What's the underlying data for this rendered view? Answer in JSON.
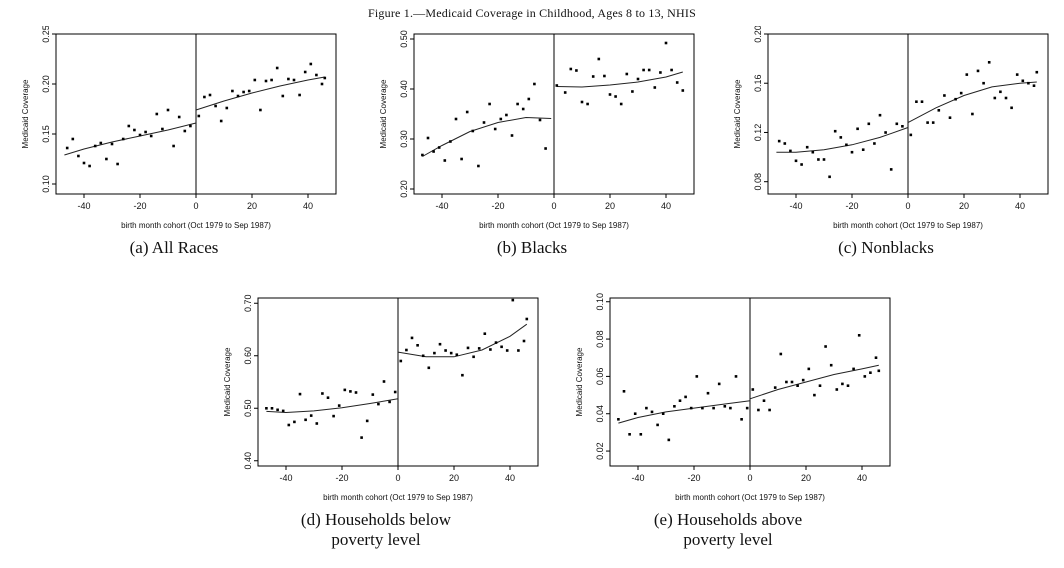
{
  "figure_title": "Figure 1.—Medicaid Coverage in Childhood, Ages 8 to 13, NHIS",
  "chart_data": [
    {
      "id": "a",
      "type": "scatter",
      "caption": [
        "(a) All Races"
      ],
      "xlabel": "birth month cohort (Oct 1979 to Sep 1987)",
      "ylabel": "Medicaid Coverage",
      "xlim": [
        -50,
        50
      ],
      "ylim": [
        0.09,
        0.25
      ],
      "xticks": [
        "-40",
        "-20",
        "0",
        "20",
        "40"
      ],
      "xtick_values": [
        -40,
        -20,
        0,
        20,
        40
      ],
      "yticks": [
        "0.10",
        "0.15",
        "0.20",
        "0.25"
      ],
      "ytick_values": [
        0.1,
        0.15,
        0.2,
        0.25
      ],
      "cutoff": 0,
      "points": [
        [
          -46,
          0.136
        ],
        [
          -44,
          0.145
        ],
        [
          -42,
          0.128
        ],
        [
          -40,
          0.121
        ],
        [
          -38,
          0.118
        ],
        [
          -36,
          0.138
        ],
        [
          -34,
          0.141
        ],
        [
          -32,
          0.125
        ],
        [
          -30,
          0.14
        ],
        [
          -28,
          0.12
        ],
        [
          -26,
          0.145
        ],
        [
          -24,
          0.158
        ],
        [
          -22,
          0.154
        ],
        [
          -20,
          0.149
        ],
        [
          -18,
          0.152
        ],
        [
          -16,
          0.148
        ],
        [
          -14,
          0.17
        ],
        [
          -12,
          0.155
        ],
        [
          -10,
          0.174
        ],
        [
          -8,
          0.138
        ],
        [
          -6,
          0.167
        ],
        [
          -4,
          0.153
        ],
        [
          -2,
          0.158
        ],
        [
          1,
          0.168
        ],
        [
          3,
          0.187
        ],
        [
          5,
          0.189
        ],
        [
          7,
          0.178
        ],
        [
          9,
          0.163
        ],
        [
          11,
          0.176
        ],
        [
          13,
          0.193
        ],
        [
          15,
          0.188
        ],
        [
          17,
          0.192
        ],
        [
          19,
          0.193
        ],
        [
          21,
          0.204
        ],
        [
          23,
          0.174
        ],
        [
          25,
          0.203
        ],
        [
          27,
          0.204
        ],
        [
          29,
          0.216
        ],
        [
          31,
          0.188
        ],
        [
          33,
          0.205
        ],
        [
          35,
          0.204
        ],
        [
          37,
          0.189
        ],
        [
          39,
          0.212
        ],
        [
          41,
          0.22
        ],
        [
          43,
          0.209
        ],
        [
          45,
          0.2
        ],
        [
          46,
          0.206
        ]
      ],
      "fit_left": [
        [
          -47,
          0.129
        ],
        [
          -40,
          0.135
        ],
        [
          -30,
          0.142
        ],
        [
          -20,
          0.148
        ],
        [
          -10,
          0.154
        ],
        [
          0,
          0.161
        ]
      ],
      "fit_right": [
        [
          0,
          0.174
        ],
        [
          10,
          0.183
        ],
        [
          20,
          0.191
        ],
        [
          30,
          0.198
        ],
        [
          40,
          0.204
        ],
        [
          46,
          0.207
        ]
      ]
    },
    {
      "id": "b",
      "type": "scatter",
      "caption": [
        "(b) Blacks"
      ],
      "xlabel": "birth month cohort (Oct 1979 to Sep 1987)",
      "ylabel": "Medicaid Coverage",
      "xlim": [
        -50,
        50
      ],
      "ylim": [
        0.19,
        0.51
      ],
      "xticks": [
        "-40",
        "-20",
        "0",
        "20",
        "40"
      ],
      "xtick_values": [
        -40,
        -20,
        0,
        20,
        40
      ],
      "yticks": [
        "0.20",
        "0.30",
        "0.40",
        "0.50"
      ],
      "ytick_values": [
        0.2,
        0.3,
        0.4,
        0.5
      ],
      "cutoff": 0,
      "points": [
        [
          -47,
          0.268
        ],
        [
          -45,
          0.302
        ],
        [
          -43,
          0.275
        ],
        [
          -41,
          0.283
        ],
        [
          -39,
          0.257
        ],
        [
          -37,
          0.295
        ],
        [
          -35,
          0.34
        ],
        [
          -33,
          0.26
        ],
        [
          -31,
          0.354
        ],
        [
          -29,
          0.316
        ],
        [
          -27,
          0.246
        ],
        [
          -25,
          0.333
        ],
        [
          -23,
          0.37
        ],
        [
          -21,
          0.32
        ],
        [
          -19,
          0.34
        ],
        [
          -17,
          0.348
        ],
        [
          -15,
          0.307
        ],
        [
          -13,
          0.37
        ],
        [
          -11,
          0.36
        ],
        [
          -9,
          0.38
        ],
        [
          -7,
          0.41
        ],
        [
          -5,
          0.338
        ],
        [
          -3,
          0.281
        ],
        [
          1,
          0.407
        ],
        [
          4,
          0.393
        ],
        [
          6,
          0.44
        ],
        [
          8,
          0.437
        ],
        [
          10,
          0.374
        ],
        [
          12,
          0.37
        ],
        [
          14,
          0.425
        ],
        [
          16,
          0.46
        ],
        [
          18,
          0.426
        ],
        [
          20,
          0.389
        ],
        [
          22,
          0.385
        ],
        [
          24,
          0.37
        ],
        [
          26,
          0.43
        ],
        [
          28,
          0.395
        ],
        [
          30,
          0.42
        ],
        [
          32,
          0.438
        ],
        [
          34,
          0.438
        ],
        [
          36,
          0.403
        ],
        [
          38,
          0.433
        ],
        [
          40,
          0.492
        ],
        [
          42,
          0.438
        ],
        [
          44,
          0.413
        ],
        [
          46,
          0.397
        ]
      ],
      "fit_left": [
        [
          -47,
          0.265
        ],
        [
          -40,
          0.287
        ],
        [
          -30,
          0.315
        ],
        [
          -20,
          0.333
        ],
        [
          -10,
          0.343
        ],
        [
          -1,
          0.341
        ]
      ],
      "fit_right": [
        [
          1,
          0.405
        ],
        [
          10,
          0.404
        ],
        [
          20,
          0.408
        ],
        [
          30,
          0.414
        ],
        [
          40,
          0.424
        ],
        [
          46,
          0.434
        ]
      ]
    },
    {
      "id": "c",
      "type": "scatter",
      "caption": [
        "(c) Nonblacks"
      ],
      "xlabel": "birth month cohort (Oct 1979 to Sep 1987)",
      "ylabel": "Medicaid Coverage",
      "xlim": [
        -50,
        50
      ],
      "ylim": [
        0.07,
        0.2
      ],
      "xticks": [
        "-40",
        "-20",
        "0",
        "20",
        "40"
      ],
      "xtick_values": [
        -40,
        -20,
        0,
        20,
        40
      ],
      "yticks": [
        "0.08",
        "0.12",
        "0.16",
        "0.20"
      ],
      "ytick_values": [
        0.08,
        0.12,
        0.16,
        0.2
      ],
      "cutoff": 0,
      "points": [
        [
          -46,
          0.113
        ],
        [
          -44,
          0.111
        ],
        [
          -42,
          0.105
        ],
        [
          -40,
          0.097
        ],
        [
          -38,
          0.094
        ],
        [
          -36,
          0.108
        ],
        [
          -34,
          0.104
        ],
        [
          -32,
          0.098
        ],
        [
          -30,
          0.098
        ],
        [
          -28,
          0.084
        ],
        [
          -26,
          0.121
        ],
        [
          -24,
          0.116
        ],
        [
          -22,
          0.11
        ],
        [
          -20,
          0.104
        ],
        [
          -18,
          0.123
        ],
        [
          -16,
          0.106
        ],
        [
          -14,
          0.127
        ],
        [
          -12,
          0.111
        ],
        [
          -10,
          0.134
        ],
        [
          -8,
          0.12
        ],
        [
          -6,
          0.09
        ],
        [
          -4,
          0.127
        ],
        [
          -2,
          0.125
        ],
        [
          1,
          0.118
        ],
        [
          3,
          0.145
        ],
        [
          5,
          0.145
        ],
        [
          7,
          0.128
        ],
        [
          9,
          0.128
        ],
        [
          11,
          0.138
        ],
        [
          13,
          0.15
        ],
        [
          15,
          0.132
        ],
        [
          17,
          0.147
        ],
        [
          19,
          0.152
        ],
        [
          21,
          0.167
        ],
        [
          23,
          0.135
        ],
        [
          25,
          0.17
        ],
        [
          27,
          0.16
        ],
        [
          29,
          0.177
        ],
        [
          31,
          0.148
        ],
        [
          33,
          0.153
        ],
        [
          35,
          0.148
        ],
        [
          37,
          0.14
        ],
        [
          39,
          0.167
        ],
        [
          41,
          0.162
        ],
        [
          43,
          0.16
        ],
        [
          45,
          0.158
        ],
        [
          46,
          0.169
        ]
      ],
      "fit_left": [
        [
          -47,
          0.104
        ],
        [
          -40,
          0.104
        ],
        [
          -30,
          0.106
        ],
        [
          -20,
          0.11
        ],
        [
          -10,
          0.116
        ],
        [
          0,
          0.124
        ]
      ],
      "fit_right": [
        [
          0,
          0.128
        ],
        [
          10,
          0.14
        ],
        [
          20,
          0.15
        ],
        [
          30,
          0.157
        ],
        [
          40,
          0.16
        ],
        [
          46,
          0.161
        ]
      ]
    },
    {
      "id": "d",
      "type": "scatter",
      "caption": [
        "(d) Households below",
        "poverty level"
      ],
      "xlabel": "birth month cohort (Oct 1979 to Sep 1987)",
      "ylabel": "Medicaid Coverage",
      "xlim": [
        -50,
        50
      ],
      "ylim": [
        0.39,
        0.71
      ],
      "xticks": [
        "-40",
        "-20",
        "0",
        "20",
        "40"
      ],
      "xtick_values": [
        -40,
        -20,
        0,
        20,
        40
      ],
      "yticks": [
        "0.40",
        "0.50",
        "0.60",
        "0.70"
      ],
      "ytick_values": [
        0.4,
        0.5,
        0.6,
        0.7
      ],
      "cutoff": 0,
      "points": [
        [
          -47,
          0.5
        ],
        [
          -45,
          0.5
        ],
        [
          -43,
          0.497
        ],
        [
          -41,
          0.495
        ],
        [
          -39,
          0.468
        ],
        [
          -37,
          0.474
        ],
        [
          -35,
          0.527
        ],
        [
          -33,
          0.478
        ],
        [
          -31,
          0.486
        ],
        [
          -29,
          0.471
        ],
        [
          -27,
          0.528
        ],
        [
          -25,
          0.52
        ],
        [
          -23,
          0.485
        ],
        [
          -21,
          0.505
        ],
        [
          -19,
          0.535
        ],
        [
          -17,
          0.532
        ],
        [
          -15,
          0.53
        ],
        [
          -13,
          0.444
        ],
        [
          -11,
          0.476
        ],
        [
          -9,
          0.526
        ],
        [
          -7,
          0.508
        ],
        [
          -5,
          0.551
        ],
        [
          -3,
          0.512
        ],
        [
          -1,
          0.531
        ],
        [
          1,
          0.59
        ],
        [
          3,
          0.611
        ],
        [
          5,
          0.634
        ],
        [
          7,
          0.62
        ],
        [
          9,
          0.6
        ],
        [
          11,
          0.577
        ],
        [
          13,
          0.605
        ],
        [
          15,
          0.622
        ],
        [
          17,
          0.61
        ],
        [
          19,
          0.605
        ],
        [
          21,
          0.602
        ],
        [
          23,
          0.563
        ],
        [
          25,
          0.615
        ],
        [
          27,
          0.598
        ],
        [
          29,
          0.614
        ],
        [
          31,
          0.642
        ],
        [
          33,
          0.612
        ],
        [
          35,
          0.625
        ],
        [
          37,
          0.617
        ],
        [
          39,
          0.61
        ],
        [
          41,
          0.706
        ],
        [
          43,
          0.61
        ],
        [
          45,
          0.628
        ],
        [
          46,
          0.67
        ]
      ],
      "fit_left": [
        [
          -47,
          0.494
        ],
        [
          -40,
          0.492
        ],
        [
          -30,
          0.495
        ],
        [
          -20,
          0.501
        ],
        [
          -10,
          0.509
        ],
        [
          0,
          0.518
        ]
      ],
      "fit_right": [
        [
          0,
          0.607
        ],
        [
          10,
          0.598
        ],
        [
          20,
          0.598
        ],
        [
          30,
          0.611
        ],
        [
          40,
          0.637
        ],
        [
          46,
          0.66
        ]
      ]
    },
    {
      "id": "e",
      "type": "scatter",
      "caption": [
        "(e) Households above",
        "poverty level"
      ],
      "xlabel": "birth month cohort (Oct 1979 to Sep 1987)",
      "ylabel": "Medicaid Coverage",
      "xlim": [
        -50,
        50
      ],
      "ylim": [
        0.012,
        0.102
      ],
      "xticks": [
        "-40",
        "-20",
        "0",
        "20",
        "40"
      ],
      "xtick_values": [
        -40,
        -20,
        0,
        20,
        40
      ],
      "yticks": [
        "0.02",
        "0.04",
        "0.06",
        "0.08",
        "0.10"
      ],
      "ytick_values": [
        0.02,
        0.04,
        0.06,
        0.08,
        0.1
      ],
      "cutoff": 0,
      "points": [
        [
          -47,
          0.037
        ],
        [
          -45,
          0.052
        ],
        [
          -43,
          0.029
        ],
        [
          -41,
          0.04
        ],
        [
          -39,
          0.029
        ],
        [
          -37,
          0.043
        ],
        [
          -35,
          0.041
        ],
        [
          -33,
          0.034
        ],
        [
          -31,
          0.04
        ],
        [
          -29,
          0.026
        ],
        [
          -27,
          0.044
        ],
        [
          -25,
          0.047
        ],
        [
          -23,
          0.049
        ],
        [
          -21,
          0.043
        ],
        [
          -19,
          0.06
        ],
        [
          -17,
          0.043
        ],
        [
          -15,
          0.051
        ],
        [
          -13,
          0.043
        ],
        [
          -11,
          0.056
        ],
        [
          -9,
          0.044
        ],
        [
          -7,
          0.043
        ],
        [
          -5,
          0.06
        ],
        [
          -3,
          0.037
        ],
        [
          -1,
          0.043
        ],
        [
          1,
          0.053
        ],
        [
          3,
          0.042
        ],
        [
          5,
          0.047
        ],
        [
          7,
          0.042
        ],
        [
          9,
          0.054
        ],
        [
          11,
          0.072
        ],
        [
          13,
          0.057
        ],
        [
          15,
          0.057
        ],
        [
          17,
          0.055
        ],
        [
          19,
          0.058
        ],
        [
          21,
          0.064
        ],
        [
          23,
          0.05
        ],
        [
          25,
          0.055
        ],
        [
          27,
          0.076
        ],
        [
          29,
          0.066
        ],
        [
          31,
          0.053
        ],
        [
          33,
          0.056
        ],
        [
          35,
          0.055
        ],
        [
          37,
          0.064
        ],
        [
          39,
          0.082
        ],
        [
          41,
          0.06
        ],
        [
          43,
          0.062
        ],
        [
          45,
          0.07
        ],
        [
          46,
          0.063
        ]
      ],
      "fit_left": [
        [
          -47,
          0.035
        ],
        [
          -40,
          0.038
        ],
        [
          -30,
          0.041
        ],
        [
          -20,
          0.043
        ],
        [
          -10,
          0.045
        ],
        [
          0,
          0.047
        ]
      ],
      "fit_right": [
        [
          0,
          0.048
        ],
        [
          10,
          0.053
        ],
        [
          20,
          0.057
        ],
        [
          30,
          0.061
        ],
        [
          40,
          0.064
        ],
        [
          46,
          0.066
        ]
      ]
    }
  ]
}
